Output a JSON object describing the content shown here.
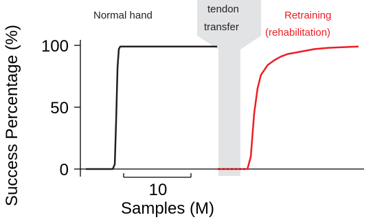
{
  "chart_data": {
    "type": "line",
    "title": "",
    "xlabel": "Samples (M)",
    "ylabel": "Success Percentage (%)",
    "ylim": [
      0,
      100
    ],
    "yticks": [
      "0",
      "50",
      "100"
    ],
    "scale_bar_label": "10",
    "scale_bar_value": 10,
    "grid": false,
    "colors": {
      "normal": "#231f20",
      "retraining": "#ed1c24",
      "transfer_band": "#e2e3e4",
      "axis": "#000000"
    },
    "annotations": {
      "normal_label": "Normal hand",
      "transfer_label_line1": "tendon",
      "transfer_label_line2": "transfer",
      "retraining_label_line1": "Retraining",
      "retraining_label_line2": "(rehabilitation)"
    },
    "series": [
      {
        "name": "Normal hand",
        "x": [
          0,
          4,
          4.3,
          4.5,
          4.7,
          4.9,
          5.1,
          6,
          8,
          10,
          12,
          14,
          16,
          18,
          19.5
        ],
        "y": [
          0,
          0,
          4,
          40,
          82,
          97,
          99,
          99,
          99,
          99,
          99,
          99,
          99,
          99,
          99
        ]
      },
      {
        "name": "Retraining (rehabilitation)",
        "x": [
          19.5,
          24,
          24.5,
          25,
          25.5,
          26,
          27,
          28,
          29,
          30,
          32,
          34,
          36,
          38,
          40.5
        ],
        "y": [
          0,
          0,
          10,
          45,
          65,
          76,
          84,
          88,
          91,
          93,
          95,
          97,
          98,
          98.5,
          99
        ]
      }
    ]
  }
}
